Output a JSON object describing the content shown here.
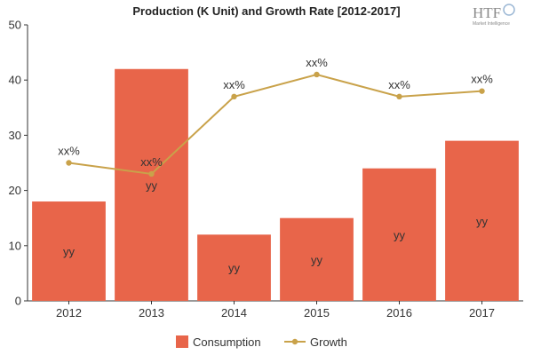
{
  "logo": {
    "text": "HTF",
    "subtitle": "Market Intelligence"
  },
  "chart_data": {
    "type": "bar",
    "title": "Production (K Unit) and Growth Rate [2012-2017]",
    "categories": [
      "2012",
      "2013",
      "2014",
      "2015",
      "2016",
      "2017"
    ],
    "ylim": [
      0,
      50
    ],
    "yticks": [
      "0",
      "10",
      "20",
      "30",
      "40",
      "50"
    ],
    "series": [
      {
        "name": "Consumption",
        "kind": "bar",
        "color": "#e8654a",
        "values": [
          18,
          42,
          12,
          15,
          24,
          29
        ],
        "labels": [
          "yy",
          "yy",
          "yy",
          "yy",
          "yy",
          "yy"
        ]
      },
      {
        "name": "Growth",
        "kind": "line",
        "color": "#c9a24a",
        "values": [
          25,
          23,
          37,
          41,
          37,
          38
        ],
        "labels": [
          "xx%",
          "xx%",
          "xx%",
          "xx%",
          "xx%",
          "xx%"
        ]
      }
    ],
    "legend": "bottom-center",
    "grid": false
  }
}
